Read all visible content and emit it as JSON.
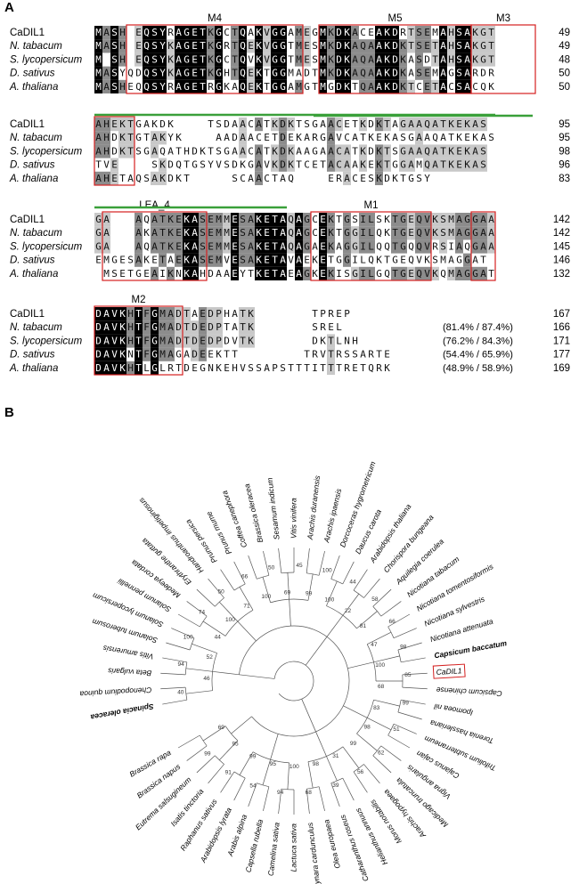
{
  "panels": {
    "a": "A",
    "b": "B"
  },
  "colors": {
    "identical": "#000000",
    "conserved": "#8c8c8c",
    "similar": "#c8c8c8",
    "motif_box": "#d42020",
    "lea_line": "#3aa03a"
  },
  "alignment": {
    "names": [
      "CaDIL1",
      "N. tabacum",
      "S. lycopersicum",
      "D. sativus",
      "A. thaliana"
    ],
    "blocks": [
      {
        "motifs": [
          {
            "label": "M4",
            "start": 4,
            "end": 26
          },
          {
            "label": "M5",
            "start": 28,
            "end": 47
          },
          {
            "label": "M3",
            "start": 47,
            "end": 55
          }
        ],
        "lea": null,
        "rows": [
          {
            "seq": "MASH-EQSYRAGETKGCTQAKVGGAMEGMKDKACEAKDRTSEMAHSAKGT",
            "end": "49"
          },
          {
            "seq": "MASH-EQSYKAGETKGRTQEKVGGTMESMKDKAQAAKDKTSETAHSAKGT",
            "end": "49"
          },
          {
            "seq": "M-SH-EQSYKAGETKGCTQVKVGGTMESMKDKAQAAKDKASDTAHSAKGT",
            "end": "48"
          },
          {
            "seq": "MASYQDQSYKAGETKGHTQEKTGGMADTMKDKAQAAKDKASEMAGSARDR",
            "end": "50"
          },
          {
            "seq": "MASHEQQSYRAGETRGKAQEKTGGAMGTMGDKTQAAKDKTCETACSACQK",
            "end": "50"
          }
        ]
      },
      {
        "motifs": [
          {
            "label": "",
            "start": 0,
            "end": 5
          }
        ],
        "lea": {
          "start": 0,
          "end": 50
        },
        "rows": [
          {
            "seq": "AHEKTGAKDK----TSDAACATKDKTSGAACETKDKTAGAAQATKEKAS",
            "end": "95"
          },
          {
            "seq": "AHDKTGTAKYK----AADAACETDEKARGAVCATKEKASGAAQATKEKAS",
            "end": "95"
          },
          {
            "seq": "AHDKTSGAQATHDKTSGAACATKDKAAGAACATKDKTSGAAQATKEKAS",
            "end": "98"
          },
          {
            "seq": "TVE----SKDQTGSYVSDKGAVKDKTCETACAAKEKTGGAMQATKEKAS",
            "end": "96"
          },
          {
            "seq": "AHETAQSAKDKT-----SCAACTAQ----ERACESKDKTGSY--------",
            "end": "83"
          }
        ]
      },
      {
        "motifs": [
          {
            "label": "LEA_4",
            "start": 1,
            "end": 14
          },
          {
            "label": "M1",
            "start": 27,
            "end": 42
          },
          {
            "label": "",
            "start": 47,
            "end": 50
          }
        ],
        "lea": null,
        "rows": [
          {
            "seq": "GA---AQATKEKASEMMESAKETAQAGCEKTGSILSKTGEQVKSMAGGAA",
            "end": "142"
          },
          {
            "seq": "GA---AKATKEKASEMMESAKETAQAGCEKTGGILQKTGEQVKSMAGGAA",
            "end": "142"
          },
          {
            "seq": "GA---AQATKEKASEMMESAKETAQAGAEKAGGILQQTGQQVRSIAQGAA",
            "end": "145"
          },
          {
            "seq": "EMGESAKETAEKASEMVESAKETAVAEKETGGILQKTGEQVKSMAGGAT",
            "end": "146"
          },
          {
            "seq": "-MSETGEAIKNKAHDAAEYTKETAEAGKEKISGILGQTGEQVKQMAGGAT",
            "end": "132"
          }
        ]
      },
      {
        "motifs": [
          {
            "label": "M2",
            "start": 0,
            "end": 11
          }
        ],
        "lea": null,
        "rows": [
          {
            "seq": "DAVKHTFGMADTAEDPHATK-------TPREP-------",
            "end": "167",
            "pct": ""
          },
          {
            "seq": "DAVKHTFGMADTDEDPTATK-------SREL-------",
            "end": "166",
            "pct": "(81.4% / 87.4%)"
          },
          {
            "seq": "DAVKHTFGMADTDEDPDVTK-------DKTLNH------",
            "end": "171",
            "pct": "(76.2% / 84.3%)"
          },
          {
            "seq": "DAVKNTFGMAGADEEKTT--------TRVTRSSARTE-",
            "end": "177",
            "pct": "(54.4% / 65.9%)"
          },
          {
            "seq": "DAVKHTLGLRTDEGNKEHVSSAPSTTTITTTRETQRK-",
            "end": "169",
            "pct": "(48.9% / 58.9%)"
          }
        ]
      }
    ]
  },
  "tree": {
    "leaves": [
      {
        "name": "Spinacia oleracea",
        "bold": true
      },
      {
        "name": "Chenopodium quinoa"
      },
      {
        "name": "Beta vulgaris"
      },
      {
        "name": "Vitis amurensis"
      },
      {
        "name": "Solanum tuberosum"
      },
      {
        "name": "Solanum lycopersicum"
      },
      {
        "name": "Solanum pennellii"
      },
      {
        "name": "Medeeya cordata"
      },
      {
        "name": "Erythranthe guttata"
      },
      {
        "name": "Handroanthus impetiginosus"
      },
      {
        "name": "Prunus persica"
      },
      {
        "name": "Prunus mume"
      },
      {
        "name": "Coffea canephora"
      },
      {
        "name": "Brassica oleracea"
      },
      {
        "name": "Sesamum indicum"
      },
      {
        "name": "Vitis vinifera"
      },
      {
        "name": "Arachis duranensis"
      },
      {
        "name": "Arachis ipaensis"
      },
      {
        "name": "Dorcoceras hygrometricum"
      },
      {
        "name": "Daucus carota"
      },
      {
        "name": "Arabidopsis thaliana"
      },
      {
        "name": "Chorispora bungeana"
      },
      {
        "name": "Aquilegia coerulea"
      },
      {
        "name": "Nicotiana tabacum"
      },
      {
        "name": "Nicotiana tomentosiformis"
      },
      {
        "name": "Nicotiana sylvestris"
      },
      {
        "name": "Nicotiana attenuata"
      },
      {
        "name": "Capsicum baccatum",
        "bold": true
      },
      {
        "name": "CaDIL1",
        "boxed": true,
        "upright": true
      },
      {
        "name": "Capsicum chinense"
      },
      {
        "name": "Ipomoea nil"
      },
      {
        "name": "Torenia hassleriana"
      },
      {
        "name": "Trifolium subterraneum"
      },
      {
        "name": "Cajanus cajan"
      },
      {
        "name": "Vigna angularis"
      },
      {
        "name": "Medicago truncatula"
      },
      {
        "name": "Arachis hypogaea"
      },
      {
        "name": "Morus notabilis"
      },
      {
        "name": "Helianthus annuus"
      },
      {
        "name": "Catharanthus roseus"
      },
      {
        "name": "Olea europaea"
      },
      {
        "name": "Cynara cardunculus"
      },
      {
        "name": "Lactuca sativa"
      },
      {
        "name": "Camelina sativa"
      },
      {
        "name": "Capsella rubella"
      },
      {
        "name": "Arabis alpina"
      },
      {
        "name": "Arabidopsis lyrata"
      },
      {
        "name": "Raphanus sativus"
      },
      {
        "name": "Isatis tinctoria"
      },
      {
        "name": "Eutrema salsugineum"
      },
      {
        "name": "Brassica napus"
      },
      {
        "name": "Brassica rapa"
      }
    ],
    "bootstraps": [
      "40",
      "46",
      "94",
      "52",
      "100",
      "44",
      "74",
      "100",
      "50",
      "71",
      "66",
      "100",
      "50",
      "69",
      "45",
      "99",
      "100",
      "100",
      "44",
      "22",
      "58",
      "81",
      "66",
      "47",
      "98",
      "100",
      "85",
      "68",
      "99",
      "83",
      "51",
      "98",
      "62",
      "99",
      "56",
      "31",
      "39",
      "98",
      "68",
      "100",
      "94",
      "95",
      "54",
      "99",
      "91",
      "95",
      "99",
      "69"
    ]
  }
}
